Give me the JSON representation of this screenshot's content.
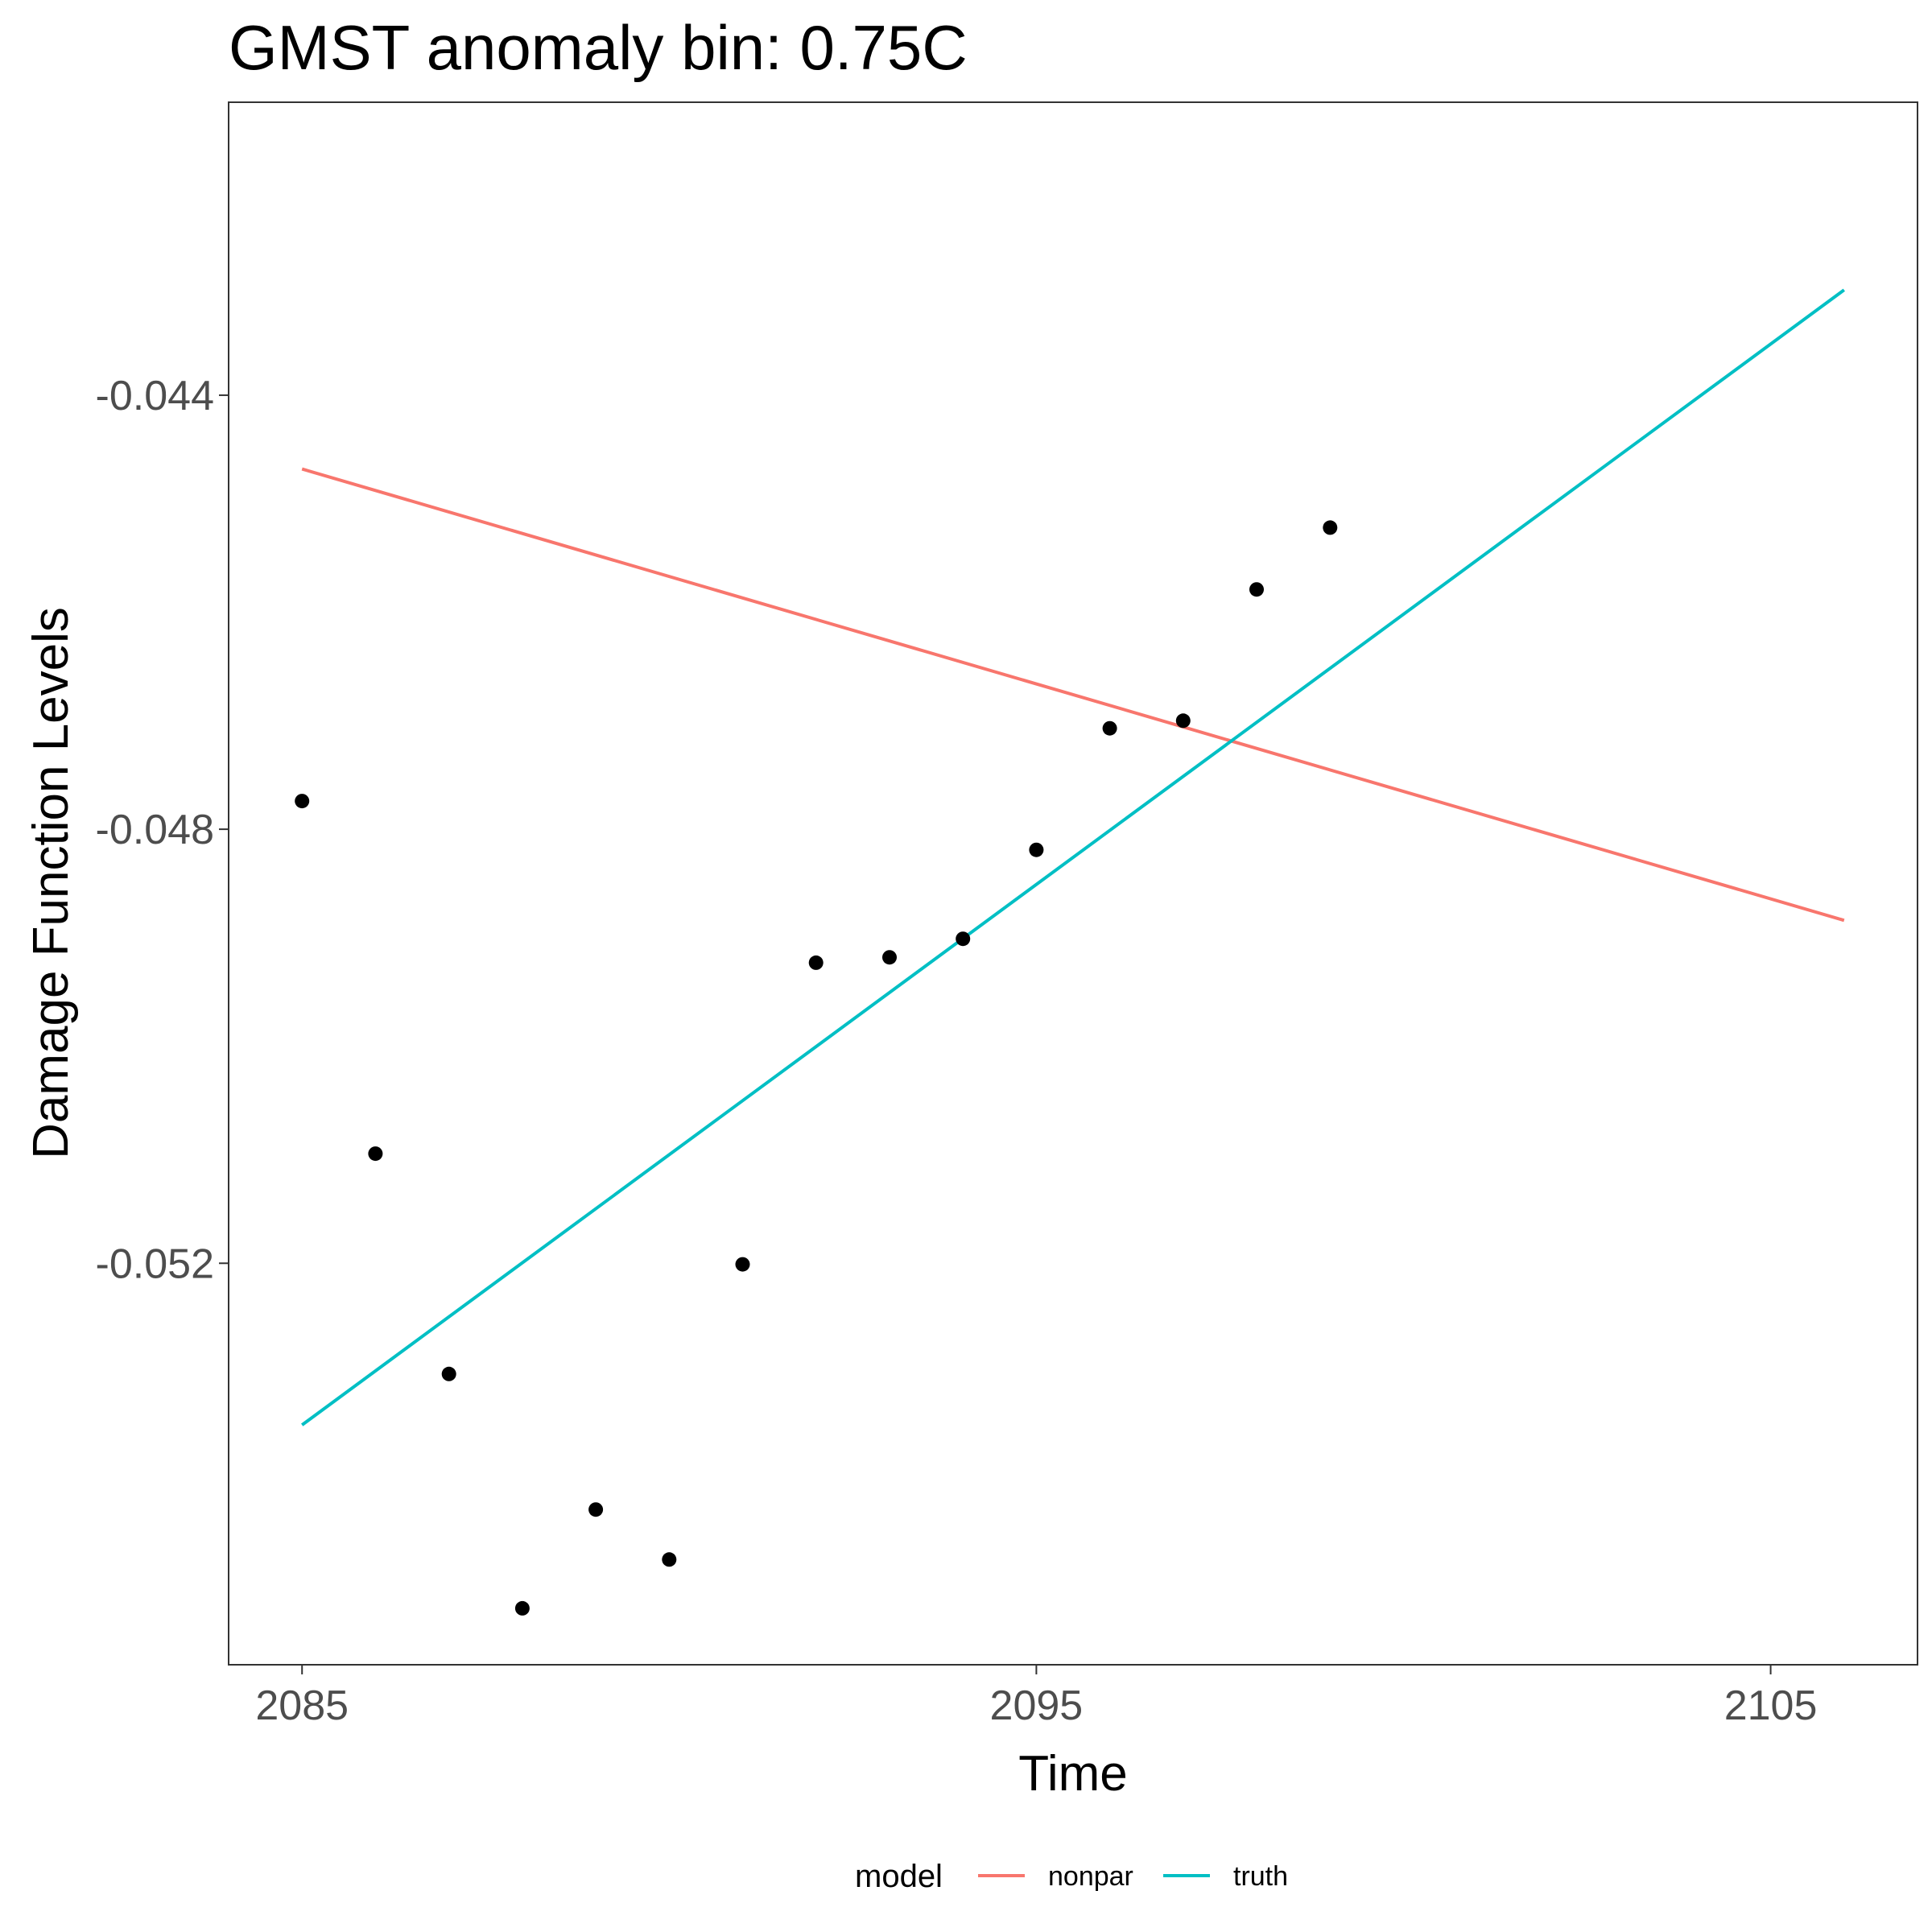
{
  "chart_data": {
    "type": "line",
    "title": "GMST anomaly bin: 0.75C",
    "xlabel": "Time",
    "ylabel": "Damage Function Levels",
    "xlim": [
      2084,
      2107
    ],
    "ylim": [
      -0.0557,
      -0.0413
    ],
    "x_ticks": [
      2085,
      2095,
      2105
    ],
    "x_tick_labels": [
      "2085",
      "2095",
      "2105"
    ],
    "y_ticks": [
      -0.044,
      -0.048,
      -0.052
    ],
    "y_tick_labels": [
      "-0.044",
      "-0.048",
      "-0.052"
    ],
    "grid": false,
    "legend": {
      "title": "model",
      "position": "bottom"
    },
    "series": [
      {
        "name": "nonpar",
        "kind": "line",
        "color": "#F8766D",
        "x": [
          2085,
          2106
        ],
        "y": [
          -0.04468,
          -0.04884
        ]
      },
      {
        "name": "truth",
        "kind": "line",
        "color": "#00BFC4",
        "x": [
          2085,
          2106
        ],
        "y": [
          -0.05349,
          -0.04303
        ]
      }
    ],
    "points": {
      "color": "#000000",
      "x": [
        2085,
        2086,
        2087,
        2088,
        2089,
        2090,
        2091,
        2092,
        2093,
        2094,
        2095,
        2096,
        2097,
        2098,
        2099
      ],
      "y": [
        -0.04774,
        -0.05099,
        -0.05302,
        -0.05518,
        -0.05427,
        -0.05473,
        -0.05201,
        -0.04923,
        -0.04918,
        -0.04901,
        -0.04819,
        -0.04707,
        -0.047,
        -0.04579,
        -0.04522
      ]
    }
  }
}
